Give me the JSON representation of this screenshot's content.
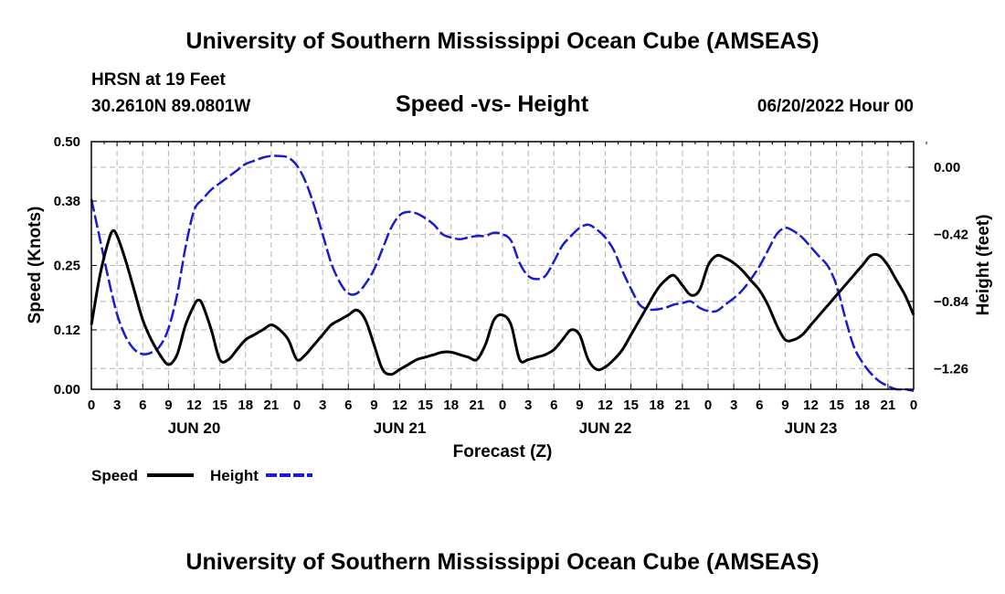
{
  "title_top": "University of Southern Mississippi Ocean Cube (AMSEAS)",
  "title_bottom": "University of Southern Mississippi Ocean Cube (AMSEAS)",
  "station": "HRSN at 19 Feet",
  "coords": "30.2610N  89.0801W",
  "subtitle": "Speed -vs- Height",
  "datetime": "06/20/2022 Hour 00",
  "colors": {
    "speed": "#000000",
    "height": "#1a1ad0",
    "grid": "#b4b4b4"
  },
  "chart_data": {
    "type": "line",
    "title": "Speed -vs- Height",
    "xlabel": "Forecast (Z)",
    "ylabel": "Speed (Knots)",
    "y2label": "Height (feet)",
    "xlim": [
      0,
      96
    ],
    "ylim": [
      0,
      0.5
    ],
    "y2lim": [
      -1.39,
      0.16
    ],
    "grid": true,
    "xticks": [
      0,
      3,
      6,
      9,
      12,
      15,
      18,
      21,
      24,
      27,
      30,
      33,
      36,
      39,
      42,
      45,
      48,
      51,
      54,
      57,
      60,
      63,
      66,
      69,
      72,
      75,
      78,
      81,
      84,
      87,
      90,
      93,
      96
    ],
    "xtick_labels": [
      "0",
      "3",
      "6",
      "9",
      "12",
      "15",
      "18",
      "21",
      "0",
      "3",
      "6",
      "9",
      "12",
      "15",
      "18",
      "21",
      "0",
      "3",
      "6",
      "9",
      "12",
      "15",
      "18",
      "21",
      "0",
      "3",
      "6",
      "9",
      "12",
      "15",
      "18",
      "21",
      "0"
    ],
    "yticks": [
      0.0,
      0.12,
      0.25,
      0.38,
      0.5
    ],
    "ytick_labels": [
      "0.00",
      "0.12",
      "0.25",
      "0.38",
      "0.50"
    ],
    "y2ticks": [
      0.0,
      -0.42,
      -0.84,
      -1.26
    ],
    "y2tick_labels": [
      "0.00",
      "−0.42",
      "−0.84",
      "−1.26"
    ],
    "day_labels": [
      {
        "x": 12,
        "label": "JUN 20"
      },
      {
        "x": 36,
        "label": "JUN 21"
      },
      {
        "x": 60,
        "label": "JUN 22"
      },
      {
        "x": 84,
        "label": "JUN 23"
      }
    ],
    "legend": [
      {
        "name": "Speed",
        "color": "#000000",
        "dash": "solid"
      },
      {
        "name": "Height",
        "color": "#1a1ad0",
        "dash": "dashed"
      }
    ],
    "series": [
      {
        "name": "Speed",
        "axis": "left",
        "x": [
          0,
          1,
          2,
          2.5,
          3,
          4,
          5,
          6,
          7,
          8,
          9,
          10,
          11,
          12,
          12.5,
          13,
          14,
          15,
          16,
          17,
          18,
          19,
          20,
          21,
          22,
          23,
          24,
          25,
          26,
          27,
          28,
          29,
          30,
          31,
          32,
          33,
          34,
          35,
          36,
          37,
          38,
          39,
          40,
          41,
          42,
          43,
          44,
          45,
          46,
          47,
          48,
          49,
          50,
          51,
          52,
          53,
          54,
          55,
          56,
          57,
          58,
          59,
          60,
          61,
          62,
          63,
          64,
          65,
          66,
          67,
          68,
          69,
          70,
          71,
          72,
          73,
          74,
          75,
          76,
          77,
          78,
          79,
          80,
          81,
          82,
          83,
          84,
          85,
          86,
          87,
          88,
          89,
          90,
          91,
          92,
          93,
          94,
          95,
          96
        ],
        "values": [
          0.13,
          0.23,
          0.3,
          0.32,
          0.31,
          0.26,
          0.2,
          0.14,
          0.1,
          0.07,
          0.05,
          0.07,
          0.13,
          0.17,
          0.18,
          0.17,
          0.12,
          0.06,
          0.06,
          0.08,
          0.1,
          0.11,
          0.12,
          0.13,
          0.12,
          0.1,
          0.06,
          0.07,
          0.09,
          0.11,
          0.13,
          0.14,
          0.15,
          0.16,
          0.14,
          0.09,
          0.04,
          0.03,
          0.04,
          0.05,
          0.06,
          0.065,
          0.07,
          0.075,
          0.075,
          0.07,
          0.065,
          0.06,
          0.09,
          0.14,
          0.15,
          0.13,
          0.06,
          0.06,
          0.065,
          0.07,
          0.08,
          0.1,
          0.12,
          0.11,
          0.06,
          0.04,
          0.045,
          0.06,
          0.08,
          0.11,
          0.14,
          0.17,
          0.2,
          0.22,
          0.23,
          0.21,
          0.19,
          0.2,
          0.25,
          0.27,
          0.265,
          0.255,
          0.24,
          0.22,
          0.2,
          0.17,
          0.13,
          0.1,
          0.1,
          0.11,
          0.13,
          0.15,
          0.17,
          0.19,
          0.21,
          0.23,
          0.25,
          0.27,
          0.27,
          0.25,
          0.22,
          0.19,
          0.15
        ]
      },
      {
        "name": "Height",
        "axis": "right",
        "x": [
          0,
          1,
          2,
          3,
          4,
          5,
          6,
          7,
          8,
          9,
          10,
          11,
          12,
          13,
          14,
          15,
          16,
          17,
          18,
          19,
          20,
          21,
          22,
          23,
          24,
          25,
          26,
          27,
          28,
          29,
          30,
          31,
          32,
          33,
          34,
          35,
          36,
          37,
          38,
          39,
          40,
          41,
          42,
          43,
          44,
          45,
          46,
          47,
          48,
          49,
          50,
          51,
          52,
          53,
          54,
          55,
          56,
          57,
          58,
          59,
          60,
          61,
          62,
          63,
          64,
          65,
          66,
          67,
          68,
          69,
          70,
          71,
          72,
          73,
          74,
          75,
          76,
          77,
          78,
          79,
          80,
          81,
          82,
          83,
          84,
          85,
          86,
          87,
          88,
          89,
          90,
          91,
          92,
          93,
          94,
          95,
          96
        ],
        "values": [
          -0.2,
          -0.45,
          -0.7,
          -0.92,
          -1.06,
          -1.14,
          -1.17,
          -1.16,
          -1.12,
          -1.01,
          -0.8,
          -0.5,
          -0.27,
          -0.2,
          -0.14,
          -0.1,
          -0.06,
          -0.02,
          0.02,
          0.04,
          0.06,
          0.07,
          0.07,
          0.06,
          0.01,
          -0.09,
          -0.24,
          -0.42,
          -0.6,
          -0.72,
          -0.79,
          -0.79,
          -0.73,
          -0.64,
          -0.51,
          -0.38,
          -0.3,
          -0.28,
          -0.29,
          -0.32,
          -0.36,
          -0.42,
          -0.44,
          -0.45,
          -0.44,
          -0.43,
          -0.43,
          -0.41,
          -0.42,
          -0.46,
          -0.6,
          -0.68,
          -0.7,
          -0.68,
          -0.59,
          -0.49,
          -0.43,
          -0.38,
          -0.36,
          -0.39,
          -0.44,
          -0.52,
          -0.65,
          -0.76,
          -0.86,
          -0.89,
          -0.89,
          -0.88,
          -0.86,
          -0.85,
          -0.84,
          -0.88,
          -0.9,
          -0.9,
          -0.86,
          -0.82,
          -0.77,
          -0.7,
          -0.62,
          -0.52,
          -0.42,
          -0.38,
          -0.4,
          -0.44,
          -0.5,
          -0.56,
          -0.62,
          -0.74,
          -0.94,
          -1.12,
          -1.22,
          -1.29,
          -1.34,
          -1.37,
          -1.39,
          -1.39,
          -1.4
        ]
      }
    ]
  }
}
